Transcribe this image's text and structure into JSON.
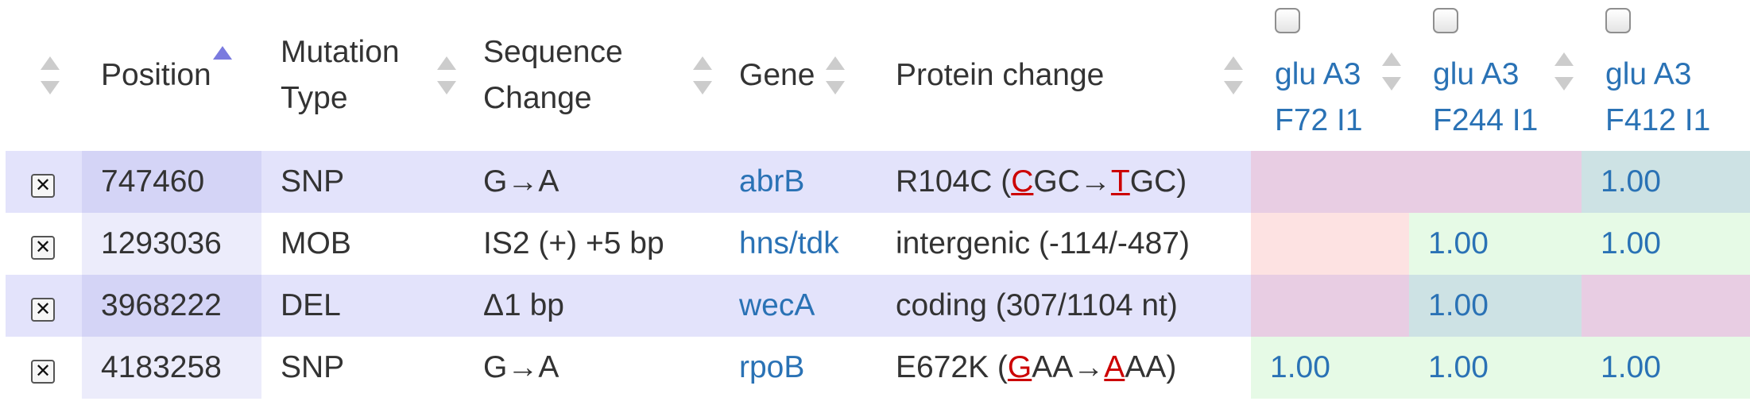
{
  "headers": {
    "position": "Position",
    "mutation_type": [
      "Mutation",
      "Type"
    ],
    "sequence_change": [
      "Sequence",
      "Change"
    ],
    "gene": "Gene",
    "protein_change": "Protein change",
    "samples": [
      {
        "line1": "glu A3",
        "line2": "F72 I1",
        "checked": false
      },
      {
        "line1": "glu A3",
        "line2": "F244 I1",
        "checked": false
      },
      {
        "line1": "glu A3",
        "line2": "F412 I1",
        "checked": false
      }
    ]
  },
  "rows": [
    {
      "position": "747460",
      "type": "SNP",
      "seq": "G→A",
      "gene": "abrB",
      "protein": {
        "pre": "R104C (",
        "c1": "C",
        "m1": "GC→",
        "c2": "T",
        "post": "GC)"
      },
      "freqs": [
        "",
        "",
        "1.00"
      ]
    },
    {
      "position": "1293036",
      "type": "MOB",
      "seq": "IS2 (+) +5 bp",
      "gene": "hns/tdk",
      "protein_text": "intergenic (-114/-487)",
      "freqs": [
        "",
        "1.00",
        "1.00"
      ]
    },
    {
      "position": "3968222",
      "type": "DEL",
      "seq": "Δ1 bp",
      "gene": "wecA",
      "protein_text": "coding (307/1104 nt)",
      "freqs": [
        "",
        "1.00",
        ""
      ]
    },
    {
      "position": "4183258",
      "type": "SNP",
      "seq": "G→A",
      "gene": "rpoB",
      "protein": {
        "pre": "E672K (",
        "c1": "G",
        "m1": "AA→",
        "c2": "A",
        "post": "AA)"
      },
      "freqs": [
        "1.00",
        "1.00",
        "1.00"
      ]
    }
  ],
  "remove_glyph": "✕",
  "colors": {
    "link": "#2a72b5",
    "highlight": "#cc0000",
    "sort_active": "#7a7adf",
    "row_shaded": "#e3e3fb",
    "cell_pink": "#e8cde3",
    "cell_teal": "#cde2e4",
    "cell_rose": "#fde2e2",
    "cell_green": "#e6fae6"
  }
}
